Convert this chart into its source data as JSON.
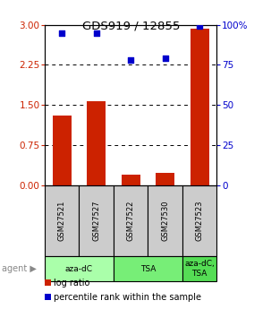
{
  "title": "GDS919 / 12855",
  "samples": [
    "GSM27521",
    "GSM27527",
    "GSM27522",
    "GSM27530",
    "GSM27523"
  ],
  "log_ratio": [
    1.3,
    1.58,
    0.2,
    0.23,
    2.92
  ],
  "percentile_rank": [
    95,
    95,
    78,
    79,
    99
  ],
  "bar_color": "#CC2200",
  "dot_color": "#0000CC",
  "left_yticks": [
    0,
    0.75,
    1.5,
    2.25,
    3
  ],
  "left_ylim": [
    0,
    3
  ],
  "right_yticks": [
    0,
    25,
    50,
    75,
    100
  ],
  "right_ylim": [
    0,
    100
  ],
  "left_tick_color": "#CC2200",
  "right_tick_color": "#0000CC",
  "sample_bg_color": "#CCCCCC",
  "agent_groups": [
    {
      "label": "aza-dC",
      "start": 0,
      "end": 1,
      "color": "#AAFFAA"
    },
    {
      "label": "TSA",
      "start": 2,
      "end": 3,
      "color": "#77EE77"
    },
    {
      "label": "aza-dC,\nTSA",
      "start": 4,
      "end": 4,
      "color": "#55DD55"
    }
  ],
  "legend_bar_label": "log ratio",
  "legend_dot_label": "percentile rank within the sample"
}
